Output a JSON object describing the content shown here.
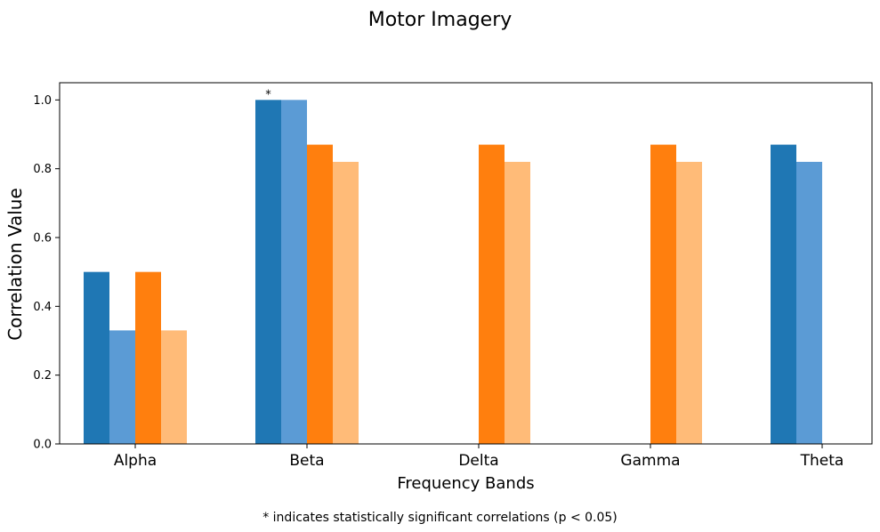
{
  "chart_data": {
    "type": "bar",
    "title": "Motor Imagery",
    "xlabel": "Frequency Bands",
    "ylabel": "Correlation Value",
    "categories": [
      "Alpha",
      "Beta",
      "Delta",
      "Gamma",
      "Theta"
    ],
    "ylim": [
      0,
      1.05
    ],
    "yticks": [
      "0.0",
      "0.2",
      "0.4",
      "0.6",
      "0.8",
      "1.0"
    ],
    "grid": false,
    "legend": "none",
    "series": [
      {
        "color": "#1f77b4",
        "values": [
          0.5,
          1.0,
          null,
          null,
          0.87
        ]
      },
      {
        "color": "#5b9bd5",
        "values": [
          0.33,
          1.0,
          null,
          null,
          0.82
        ]
      },
      {
        "color": "#ff7f0e",
        "values": [
          0.5,
          0.87,
          0.87,
          0.87,
          null
        ]
      },
      {
        "color": "#ffbb78",
        "values": [
          0.33,
          0.82,
          0.82,
          0.82,
          null
        ]
      }
    ],
    "annotations": [
      {
        "text": "*",
        "category": "Beta",
        "series_index": 0
      }
    ],
    "footnote": "* indicates statistically significant correlations (p < 0.05)"
  }
}
